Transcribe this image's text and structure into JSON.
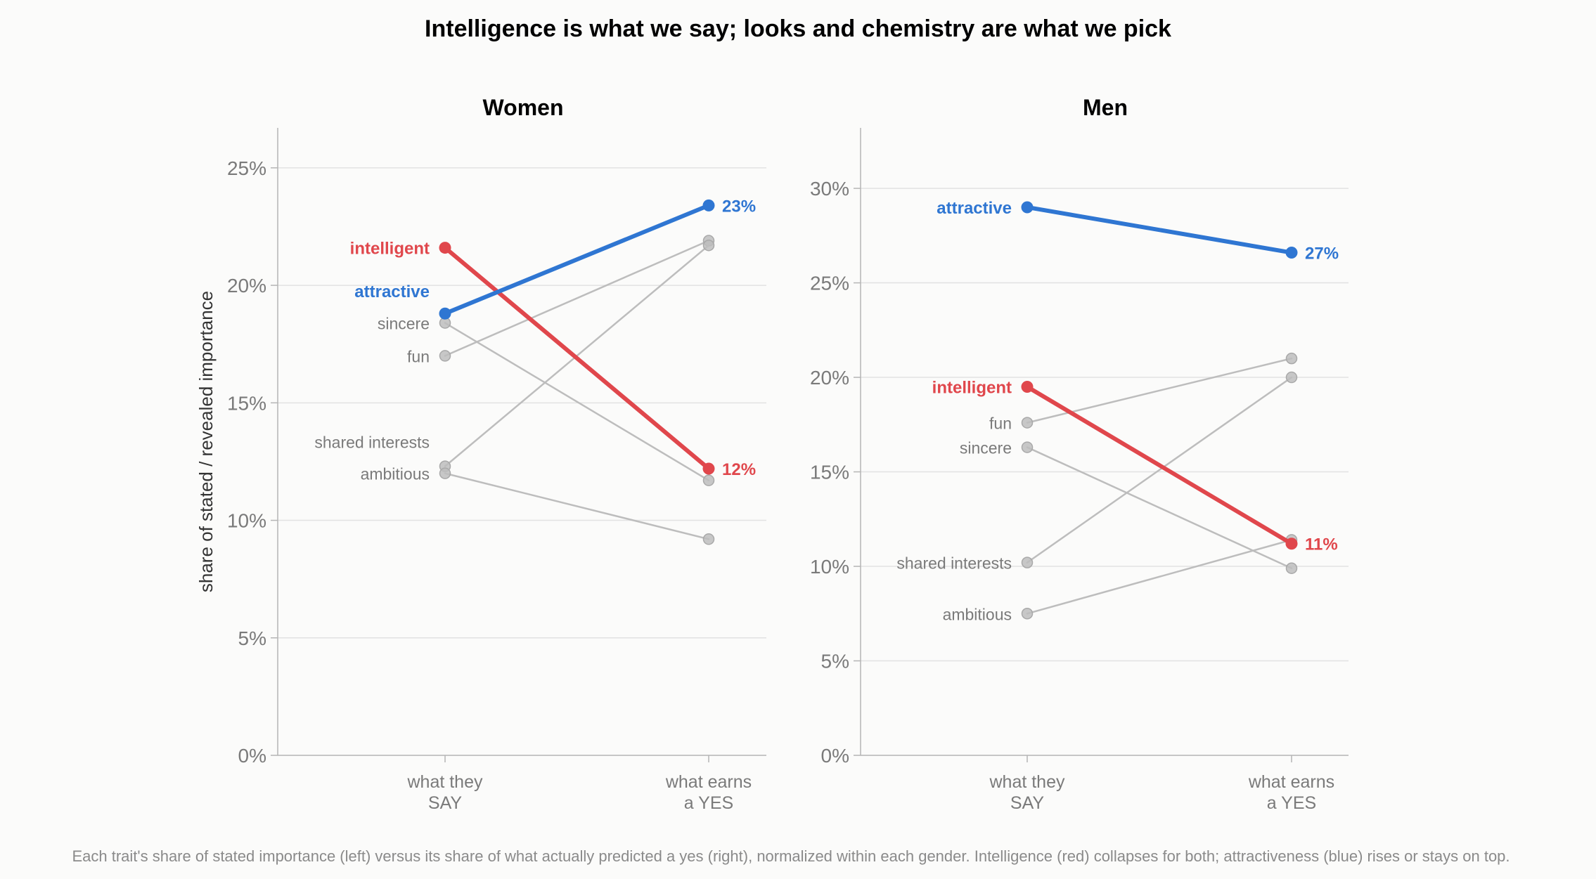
{
  "title": "Intelligence is what we say; looks and chemistry are what we pick",
  "caption": "Each trait's share of stated importance (left) versus its share of what actually predicted a yes (right), normalized within each gender. Intelligence (red) collapses for both; attractiveness (blue) rises or stays on top.",
  "chart_data": [
    {
      "type": "line",
      "title": "Women",
      "ylabel": "share of stated / revealed importance",
      "categories": [
        "what they\nSAY",
        "what earns\na YES"
      ],
      "ylim": [
        0,
        26.7
      ],
      "yticks": [
        0,
        5,
        10,
        15,
        20,
        25
      ],
      "ytick_labels": [
        "0%",
        "5%",
        "10%",
        "15%",
        "20%",
        "25%"
      ],
      "series": [
        {
          "name": "intelligent",
          "values": [
            21.6,
            12.2
          ],
          "highlight": true,
          "color": "#e0474c",
          "end_label": "12%"
        },
        {
          "name": "attractive",
          "values": [
            18.8,
            23.4
          ],
          "highlight": true,
          "color": "#2f76d2",
          "end_label": "23%"
        },
        {
          "name": "sincere",
          "values": [
            18.4,
            11.7
          ],
          "highlight": false
        },
        {
          "name": "fun",
          "values": [
            17.0,
            21.9
          ],
          "highlight": false
        },
        {
          "name": "shared interests",
          "values": [
            12.3,
            21.7
          ],
          "highlight": false
        },
        {
          "name": "ambitious",
          "values": [
            12.0,
            9.2
          ],
          "highlight": false
        }
      ]
    },
    {
      "type": "line",
      "title": "Men",
      "ylabel": "",
      "categories": [
        "what they\nSAY",
        "what earns\na YES"
      ],
      "ylim": [
        0,
        33.2
      ],
      "yticks": [
        0,
        5,
        10,
        15,
        20,
        25,
        30
      ],
      "ytick_labels": [
        "0%",
        "5%",
        "10%",
        "15%",
        "20%",
        "25%",
        "30%"
      ],
      "series": [
        {
          "name": "attractive",
          "values": [
            29.0,
            26.6
          ],
          "highlight": true,
          "color": "#2f76d2",
          "end_label": "27%"
        },
        {
          "name": "intelligent",
          "values": [
            19.5,
            11.2
          ],
          "highlight": true,
          "color": "#e0474c",
          "end_label": "11%"
        },
        {
          "name": "fun",
          "values": [
            17.6,
            21.0
          ],
          "highlight": false
        },
        {
          "name": "sincere",
          "values": [
            16.3,
            9.9
          ],
          "highlight": false
        },
        {
          "name": "shared interests",
          "values": [
            10.2,
            20.0
          ],
          "highlight": false
        },
        {
          "name": "ambitious",
          "values": [
            7.5,
            11.4
          ],
          "highlight": false
        }
      ]
    }
  ],
  "colors": {
    "intelligent": "#e0474c",
    "attractive": "#2f76d2",
    "muted": "#bdbdbd"
  }
}
